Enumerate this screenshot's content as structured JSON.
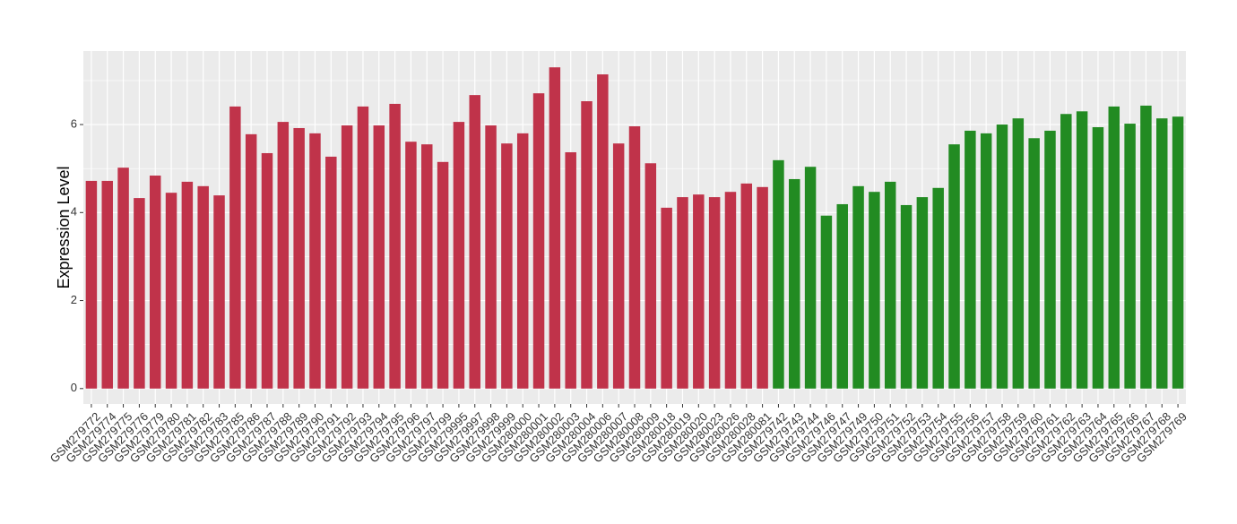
{
  "chart_data": {
    "type": "bar",
    "y_label": "Expression Level",
    "categories": [
      "GSM279772",
      "GSM279774",
      "GSM279775",
      "GSM279776",
      "GSM279779",
      "GSM279780",
      "GSM279781",
      "GSM279782",
      "GSM279783",
      "GSM279785",
      "GSM279786",
      "GSM279787",
      "GSM279788",
      "GSM279789",
      "GSM279790",
      "GSM279791",
      "GSM279792",
      "GSM279793",
      "GSM279794",
      "GSM279795",
      "GSM279796",
      "GSM279797",
      "GSM279799",
      "GSM279995",
      "GSM279997",
      "GSM279998",
      "GSM279999",
      "GSM280000",
      "GSM280001",
      "GSM280002",
      "GSM280003",
      "GSM280004",
      "GSM280006",
      "GSM280007",
      "GSM280008",
      "GSM280009",
      "GSM280018",
      "GSM280019",
      "GSM280020",
      "GSM280023",
      "GSM280026",
      "GSM280028",
      "GSM280081",
      "GSM279742",
      "GSM279743",
      "GSM279744",
      "GSM279746",
      "GSM279747",
      "GSM279749",
      "GSM279750",
      "GSM279751",
      "GSM279752",
      "GSM279753",
      "GSM279754",
      "GSM279755",
      "GSM279756",
      "GSM279757",
      "GSM279758",
      "GSM279759",
      "GSM279760",
      "GSM279761",
      "GSM279762",
      "GSM279763",
      "GSM279764",
      "GSM279765",
      "GSM279766",
      "GSM279767",
      "GSM279768",
      "GSM279769"
    ],
    "values": [
      4.72,
      4.72,
      5.02,
      4.33,
      4.84,
      4.45,
      4.7,
      4.6,
      4.39,
      6.41,
      5.78,
      5.35,
      6.06,
      5.92,
      5.8,
      5.27,
      5.98,
      6.41,
      5.98,
      6.47,
      5.61,
      5.55,
      5.15,
      6.06,
      6.67,
      5.98,
      5.57,
      5.8,
      6.71,
      7.3,
      5.37,
      6.53,
      7.14,
      5.57,
      5.96,
      5.12,
      4.11,
      4.35,
      4.41,
      4.35,
      4.47,
      4.66,
      4.58,
      5.19,
      4.76,
      5.04,
      3.93,
      4.19,
      4.6,
      4.47,
      4.7,
      4.17,
      4.35,
      4.56,
      5.55,
      5.86,
      5.8,
      6.0,
      6.14,
      5.69,
      5.86,
      6.24,
      6.3,
      5.94,
      6.41,
      6.02,
      6.43,
      6.14,
      6.18
    ],
    "colors": [
      "#c0334a",
      "#c0334a",
      "#c0334a",
      "#c0334a",
      "#c0334a",
      "#c0334a",
      "#c0334a",
      "#c0334a",
      "#c0334a",
      "#c0334a",
      "#c0334a",
      "#c0334a",
      "#c0334a",
      "#c0334a",
      "#c0334a",
      "#c0334a",
      "#c0334a",
      "#c0334a",
      "#c0334a",
      "#c0334a",
      "#c0334a",
      "#c0334a",
      "#c0334a",
      "#c0334a",
      "#c0334a",
      "#c0334a",
      "#c0334a",
      "#c0334a",
      "#c0334a",
      "#c0334a",
      "#c0334a",
      "#c0334a",
      "#c0334a",
      "#c0334a",
      "#c0334a",
      "#c0334a",
      "#c0334a",
      "#c0334a",
      "#c0334a",
      "#c0334a",
      "#c0334a",
      "#c0334a",
      "#c0334a",
      "#228b22",
      "#228b22",
      "#228b22",
      "#228b22",
      "#228b22",
      "#228b22",
      "#228b22",
      "#228b22",
      "#228b22",
      "#228b22",
      "#228b22",
      "#228b22",
      "#228b22",
      "#228b22",
      "#228b22",
      "#228b22",
      "#228b22",
      "#228b22",
      "#228b22",
      "#228b22",
      "#228b22",
      "#228b22",
      "#228b22",
      "#228b22",
      "#228b22",
      "#228b22"
    ],
    "ylim": [
      -0.35,
      7.67
    ],
    "yticks": [
      0,
      2,
      4,
      6
    ],
    "grid": true
  }
}
